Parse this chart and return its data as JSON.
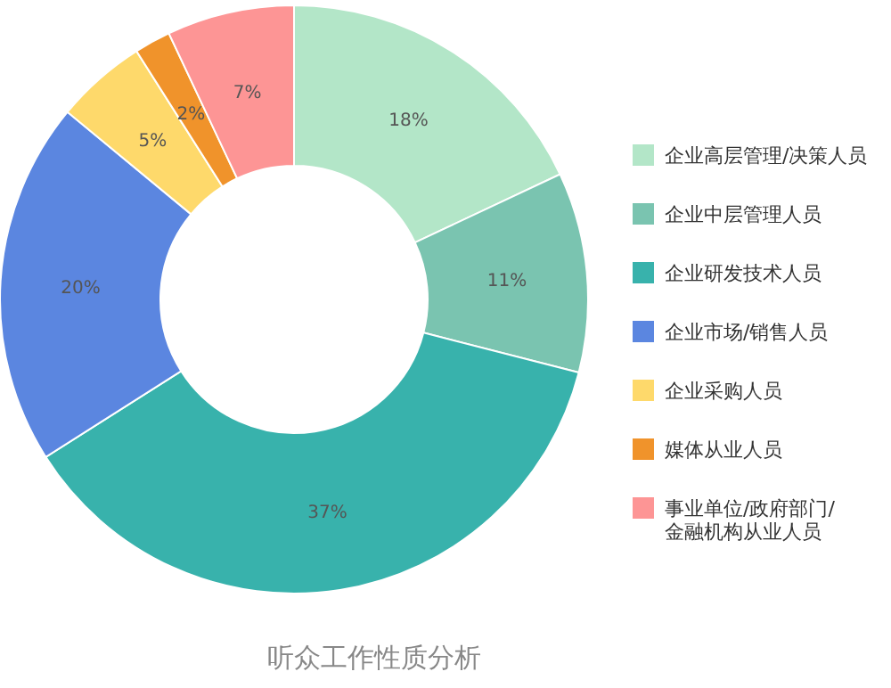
{
  "chart_data": {
    "type": "donut",
    "title": "听众工作性质分析",
    "categories": [
      "企业高层管理/决策人员",
      "企业中层管理人员",
      "企业研发技术人员",
      "企业市场/销售人员",
      "企业采购人员",
      "媒体从业人员",
      "事业单位/政府部门/金融机构从业人员"
    ],
    "values": [
      18,
      11,
      37,
      20,
      5,
      2,
      7
    ],
    "value_labels": [
      "18%",
      "11%",
      "37%",
      "20%",
      "5%",
      "2%",
      "7%"
    ],
    "colors": [
      "#b3e6c8",
      "#7ac4b0",
      "#38b2ac",
      "#5b86e0",
      "#fed96b",
      "#f0932b",
      "#fd9595"
    ],
    "legend": "right"
  }
}
